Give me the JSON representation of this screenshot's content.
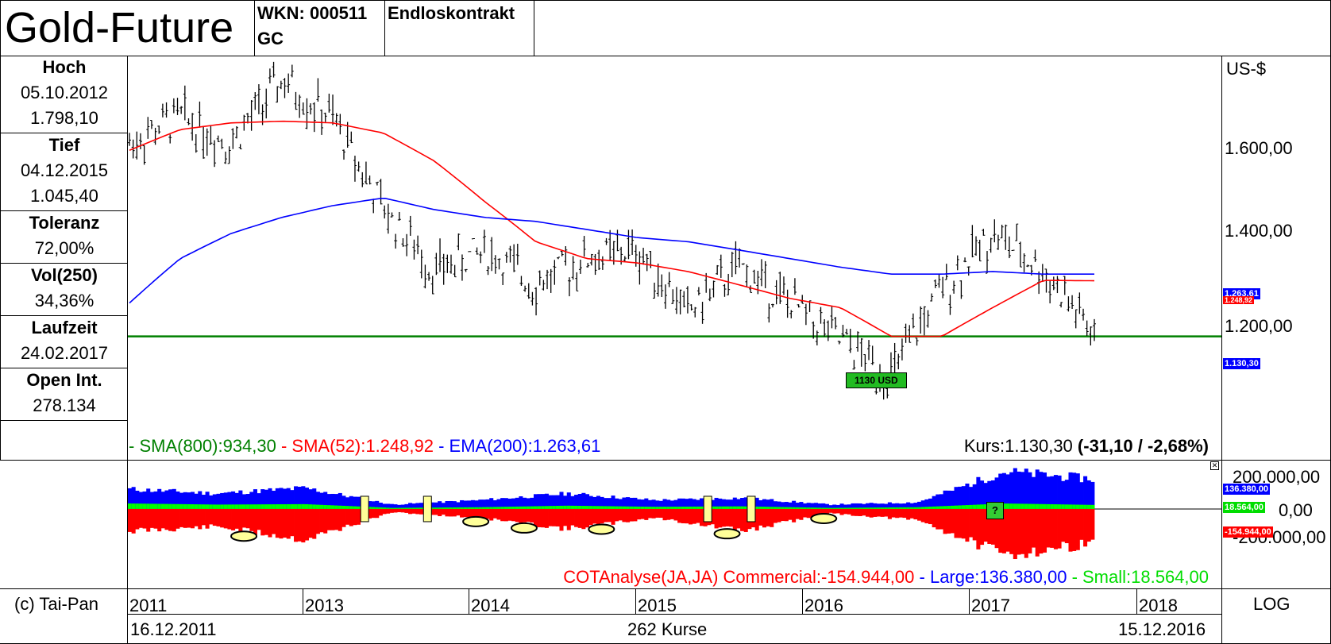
{
  "header": {
    "title": "Gold-Future",
    "wkn": "WKN: 000511",
    "symbol": "GC",
    "contract": "Endloskontrakt"
  },
  "stats": [
    {
      "label": "Hoch",
      "values": [
        "05.10.2012",
        "1.798,10"
      ]
    },
    {
      "label": "Tief",
      "values": [
        "04.12.2015",
        "1.045,40"
      ]
    },
    {
      "label": "Toleranz",
      "values": [
        "72,00%"
      ]
    },
    {
      "label": "Vol(250)",
      "values": [
        "34,36%"
      ]
    },
    {
      "label": "Laufzeit",
      "values": [
        "24.02.2017"
      ]
    },
    {
      "label": "Open Int.",
      "values": [
        "278.134"
      ]
    }
  ],
  "price_panel": {
    "currency": "US-$",
    "y_ticks": [
      "1.600,00",
      "1.400,00",
      "1.200,00"
    ],
    "badges": {
      "ema": "1.263,61",
      "sma52": "1.248,92",
      "last": "1.130,30"
    },
    "support_label": "1130 USD",
    "legend": {
      "sma800": "- SMA(800):934,30",
      "sma52": " - SMA(52):1.248,92",
      "ema200": " - EMA(200):1.263,61"
    },
    "kurs": "Kurs:1.130,30",
    "change": "(-31,10 / -2,68%)"
  },
  "cot_panel": {
    "y_ticks": [
      "200.000,00",
      "0,00",
      "-200.000,00"
    ],
    "badges": {
      "large": "136.380,00",
      "small": "18.564,00",
      "commercial": "-154.944,00"
    },
    "question": "?",
    "legend": {
      "main": "COTAnalyse(JA,JA) Commercial:-154.944,00",
      "large": " - Large:136.380,00",
      "small": " - Small:18.564,00"
    }
  },
  "footer": {
    "copyright": "(c) Tai-Pan",
    "years": [
      "2011",
      "2013",
      "2014",
      "2015",
      "2016",
      "2017",
      "2018"
    ],
    "scale": "LOG",
    "start_date": "16.12.2011",
    "count": "262 Kurse",
    "end_date": "15.12.2016"
  },
  "colors": {
    "price": "#000000",
    "sma52": "#ff0000",
    "ema200": "#0000ff",
    "support": "#008000",
    "large": "#0000ff",
    "small": "#00ff00",
    "commercial": "#ff0000",
    "marker_fill": "#ffff99"
  },
  "chart_data": [
    {
      "type": "line",
      "x": [
        "2011-12",
        "2012-03",
        "2012-06",
        "2012-10",
        "2013-01",
        "2013-04",
        "2013-07",
        "2013-10",
        "2014-01",
        "2014-04",
        "2014-07",
        "2014-11",
        "2015-01",
        "2015-04",
        "2015-07",
        "2015-12",
        "2016-03",
        "2016-07",
        "2016-10",
        "2016-12"
      ],
      "series": [
        {
          "name": "Kurs",
          "values": [
            1600,
            1680,
            1600,
            1790,
            1670,
            1420,
            1270,
            1320,
            1240,
            1300,
            1320,
            1180,
            1280,
            1200,
            1120,
            1050,
            1230,
            1360,
            1270,
            1130
          ]
        },
        {
          "name": "SMA(52)",
          "values": [
            1580,
            1640,
            1660,
            1665,
            1660,
            1630,
            1550,
            1440,
            1340,
            1300,
            1290,
            1270,
            1240,
            1210,
            1190,
            1130,
            1130,
            1190,
            1250,
            1249
          ]
        },
        {
          "name": "EMA(200)",
          "values": [
            1200,
            1300,
            1360,
            1400,
            1430,
            1450,
            1420,
            1400,
            1390,
            1370,
            1350,
            1340,
            1320,
            1300,
            1280,
            1264,
            1264,
            1270,
            1264,
            1264
          ]
        }
      ],
      "ylim": [
        1000,
        1850
      ],
      "y_scale": "log",
      "hline": 1130
    },
    {
      "type": "area",
      "x": [
        "2011-12",
        "2012-06",
        "2012-10",
        "2013-04",
        "2013-10",
        "2014-04",
        "2014-10",
        "2015-04",
        "2015-10",
        "2016-01",
        "2016-07",
        "2016-12"
      ],
      "series": [
        {
          "name": "Large",
          "values": [
            90000,
            70000,
            95000,
            20000,
            40000,
            70000,
            40000,
            50000,
            20000,
            30000,
            170000,
            136380
          ]
        },
        {
          "name": "Small",
          "values": [
            25000,
            20000,
            22000,
            5000,
            8000,
            15000,
            10000,
            12000,
            5000,
            8000,
            25000,
            18564
          ]
        },
        {
          "name": "Commercial",
          "values": [
            -100000,
            -80000,
            -140000,
            -15000,
            -40000,
            -90000,
            -40000,
            -100000,
            -20000,
            -50000,
            -210000,
            -154944
          ]
        }
      ],
      "ylim": [
        -260000,
        220000
      ]
    }
  ]
}
